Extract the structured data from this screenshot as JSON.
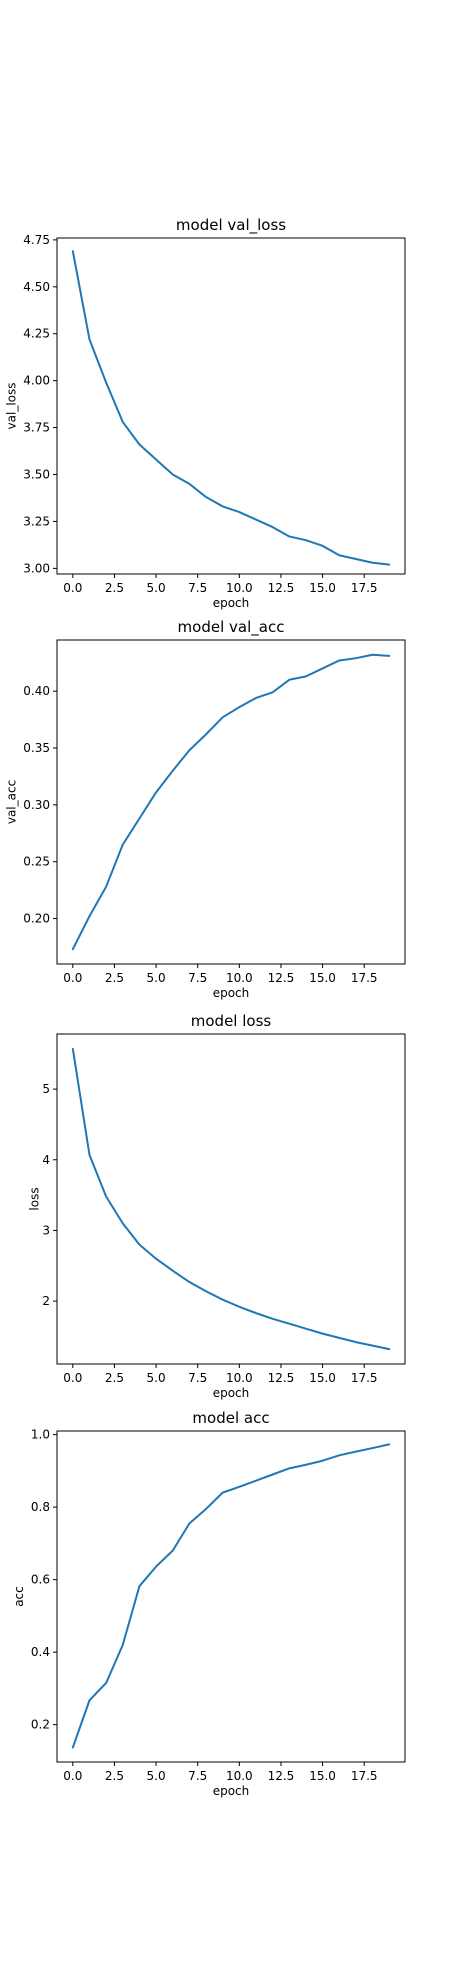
{
  "figure": {
    "background": "#ffffff"
  },
  "chart_data": [
    {
      "type": "line",
      "title": "model val_loss",
      "xlabel": "epoch",
      "ylabel": "val_loss",
      "color": "#1f77b4",
      "grid": false,
      "legend": "none",
      "xlim": [
        -0.95,
        19.95
      ],
      "ylim": [
        2.97,
        4.76
      ],
      "xticks": [
        0,
        2.5,
        5,
        7.5,
        10,
        12.5,
        15,
        17.5
      ],
      "xtick_labels": [
        "0.0",
        "2.5",
        "5.0",
        "7.5",
        "10.0",
        "12.5",
        "15.0",
        "17.5"
      ],
      "yticks": [
        3.0,
        3.25,
        3.5,
        3.75,
        4.0,
        4.25,
        4.5,
        4.75
      ],
      "ytick_labels": [
        "3.00",
        "3.25",
        "3.50",
        "3.75",
        "4.00",
        "4.25",
        "4.50",
        "4.75"
      ],
      "x": [
        0,
        1,
        2,
        3,
        4,
        5,
        6,
        7,
        8,
        9,
        10,
        11,
        12,
        13,
        14,
        15,
        16,
        17,
        18,
        19
      ],
      "y": [
        4.69,
        4.22,
        3.99,
        3.78,
        3.66,
        3.58,
        3.5,
        3.45,
        3.38,
        3.33,
        3.3,
        3.26,
        3.22,
        3.17,
        3.15,
        3.12,
        3.07,
        3.05,
        3.03,
        3.02
      ]
    },
    {
      "type": "line",
      "title": "model val_acc",
      "xlabel": "epoch",
      "ylabel": "val_acc",
      "color": "#1f77b4",
      "grid": false,
      "legend": "none",
      "xlim": [
        -0.95,
        19.95
      ],
      "ylim": [
        0.16,
        0.445
      ],
      "xticks": [
        0,
        2.5,
        5,
        7.5,
        10,
        12.5,
        15,
        17.5
      ],
      "xtick_labels": [
        "0.0",
        "2.5",
        "5.0",
        "7.5",
        "10.0",
        "12.5",
        "15.0",
        "17.5"
      ],
      "yticks": [
        0.2,
        0.25,
        0.3,
        0.35,
        0.4
      ],
      "ytick_labels": [
        "0.20",
        "0.25",
        "0.30",
        "0.35",
        "0.40"
      ],
      "x": [
        0,
        1,
        2,
        3,
        4,
        5,
        6,
        7,
        8,
        9,
        10,
        11,
        12,
        13,
        14,
        15,
        16,
        17,
        18,
        19
      ],
      "y": [
        0.173,
        0.202,
        0.228,
        0.265,
        0.288,
        0.311,
        0.33,
        0.348,
        0.362,
        0.377,
        0.386,
        0.394,
        0.399,
        0.41,
        0.413,
        0.42,
        0.427,
        0.429,
        0.432,
        0.431
      ]
    },
    {
      "type": "line",
      "title": "model loss",
      "xlabel": "epoch",
      "ylabel": "loss",
      "color": "#1f77b4",
      "grid": false,
      "legend": "none",
      "xlim": [
        -0.95,
        19.95
      ],
      "ylim": [
        1.11,
        5.78
      ],
      "xticks": [
        0,
        2.5,
        5,
        7.5,
        10,
        12.5,
        15,
        17.5
      ],
      "xtick_labels": [
        "0.0",
        "2.5",
        "5.0",
        "7.5",
        "10.0",
        "12.5",
        "15.0",
        "17.5"
      ],
      "yticks": [
        2,
        3,
        4,
        5
      ],
      "ytick_labels": [
        "2",
        "3",
        "4",
        "5"
      ],
      "x": [
        0,
        1,
        2,
        3,
        4,
        5,
        6,
        7,
        8,
        9,
        10,
        11,
        12,
        13,
        14,
        15,
        16,
        17,
        18,
        19
      ],
      "y": [
        5.57,
        4.07,
        3.48,
        3.1,
        2.8,
        2.6,
        2.43,
        2.27,
        2.14,
        2.02,
        1.92,
        1.83,
        1.75,
        1.68,
        1.61,
        1.54,
        1.48,
        1.42,
        1.37,
        1.32
      ]
    },
    {
      "type": "line",
      "title": "model acc",
      "xlabel": "epoch",
      "ylabel": "acc",
      "color": "#1f77b4",
      "grid": false,
      "legend": "none",
      "xlim": [
        -0.95,
        19.95
      ],
      "ylim": [
        0.097,
        1.01
      ],
      "xticks": [
        0,
        2.5,
        5,
        7.5,
        10,
        12.5,
        15,
        17.5
      ],
      "xtick_labels": [
        "0.0",
        "2.5",
        "5.0",
        "7.5",
        "10.0",
        "12.5",
        "15.0",
        "17.5"
      ],
      "yticks": [
        0.2,
        0.4,
        0.6,
        0.8,
        1.0
      ],
      "ytick_labels": [
        "0.2",
        "0.4",
        "0.6",
        "0.8",
        "1.0"
      ],
      "x": [
        0,
        1,
        2,
        3,
        4,
        5,
        6,
        7,
        8,
        9,
        10,
        11,
        12,
        13,
        14,
        15,
        16,
        17,
        18,
        19
      ],
      "y": [
        0.137,
        0.267,
        0.315,
        0.42,
        0.582,
        0.636,
        0.68,
        0.755,
        0.795,
        0.84,
        0.856,
        0.873,
        0.89,
        0.907,
        0.917,
        0.928,
        0.943,
        0.953,
        0.963,
        0.973
      ]
    }
  ]
}
